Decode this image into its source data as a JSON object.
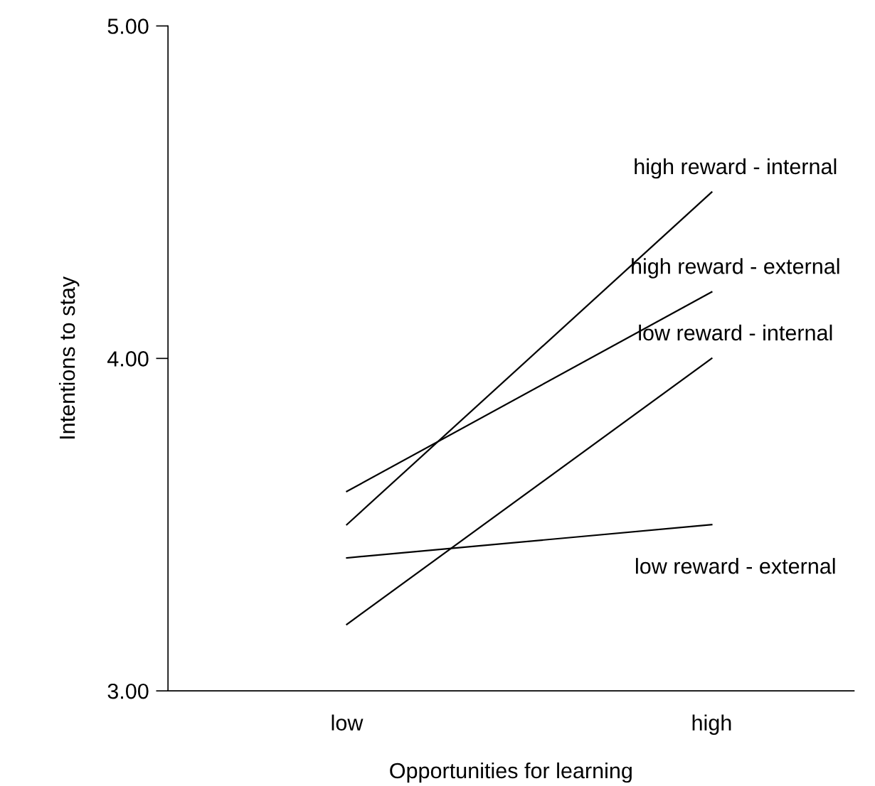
{
  "chart_data": {
    "type": "line",
    "xlabel": "Opportunities for learning",
    "ylabel": "Intentions to stay",
    "categories": [
      "low",
      "high"
    ],
    "series": [
      {
        "name": "high reward - internal",
        "color": "#000000",
        "values": [
          3.5,
          4.5
        ]
      },
      {
        "name": "high reward - external",
        "color": "#000000",
        "values": [
          3.6,
          4.2
        ]
      },
      {
        "name": "low reward - internal",
        "color": "#000000",
        "values": [
          3.2,
          4.0
        ]
      },
      {
        "name": "low reward - external",
        "color": "#000000",
        "values": [
          3.4,
          3.5
        ]
      }
    ],
    "ylim": [
      3,
      5
    ],
    "yticks": [
      {
        "value": 3,
        "label": "3.00"
      },
      {
        "value": 4,
        "label": "4.00"
      },
      {
        "value": 5,
        "label": "5.00"
      }
    ],
    "grid": false,
    "marker": "none",
    "line_style": "solid"
  }
}
